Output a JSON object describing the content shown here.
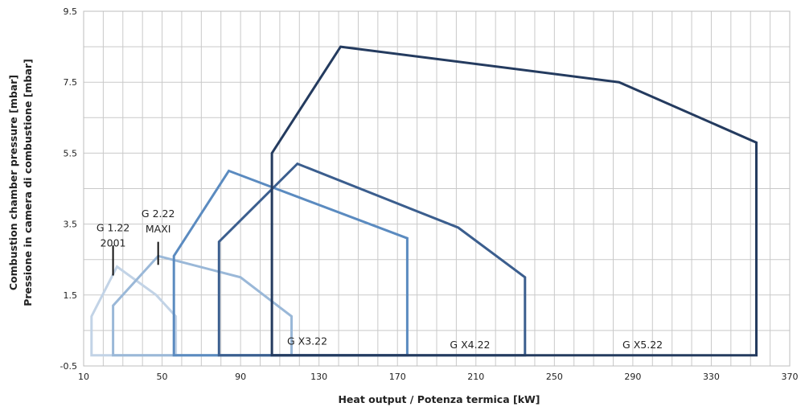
{
  "chart_data": {
    "type": "line",
    "xlabel": "Heat output / Potenza termica [kW]",
    "ylabel": [
      "Combustion chamber pressure [mbar]",
      "Pressione in camera di combustione [mbar]"
    ],
    "xlim": [
      10,
      370
    ],
    "ylim": [
      -0.5,
      9.5
    ],
    "xticks": [
      "10",
      "50",
      "90",
      "130",
      "170",
      "210",
      "250",
      "290",
      "330",
      "370"
    ],
    "yticks": [
      "-0.5",
      "1.5",
      "3.5",
      "5.5",
      "7.5",
      "9.5"
    ],
    "x_minor_grid_step": 10,
    "y_minor_grid_step": 1,
    "grid": true,
    "series": [
      {
        "name": "G 1.22 2001",
        "color": "#c2d3e6",
        "points": [
          [
            14,
            -0.2
          ],
          [
            14,
            0.9
          ],
          [
            27,
            2.3
          ],
          [
            47,
            1.5
          ],
          [
            57,
            0.9
          ],
          [
            57,
            -0.2
          ]
        ]
      },
      {
        "name": "G 2.22 MAXI",
        "color": "#9ab8d8",
        "points": [
          [
            25,
            -0.2
          ],
          [
            25,
            1.2
          ],
          [
            48,
            2.6
          ],
          [
            90,
            2.0
          ],
          [
            116,
            0.9
          ],
          [
            116,
            -0.2
          ]
        ]
      },
      {
        "name": "G X3.22",
        "color": "#5b8bc0",
        "points": [
          [
            56,
            -0.2
          ],
          [
            56,
            2.6
          ],
          [
            84,
            5.0
          ],
          [
            175,
            3.1
          ],
          [
            175,
            -0.2
          ]
        ]
      },
      {
        "name": "G X4.22",
        "color": "#3b5e8e",
        "points": [
          [
            79,
            -0.2
          ],
          [
            79,
            3.0
          ],
          [
            119,
            5.2
          ],
          [
            201,
            3.4
          ],
          [
            235,
            2.0
          ],
          [
            235,
            -0.2
          ]
        ]
      },
      {
        "name": "G X5.22",
        "color": "#243b5f",
        "points": [
          [
            106,
            -0.2
          ],
          [
            106,
            5.5
          ],
          [
            141,
            8.5
          ],
          [
            283,
            7.5
          ],
          [
            353,
            5.8
          ],
          [
            353,
            -0.2
          ]
        ]
      }
    ],
    "labels": [
      {
        "lines": [
          "G 1.22",
          "2001"
        ],
        "x": 25,
        "y": 3.3,
        "marker_y": [
          2.9,
          2.05
        ]
      },
      {
        "lines": [
          "G 2.22",
          "MAXI"
        ],
        "x": 48,
        "y": 3.7,
        "marker_y": [
          3.0,
          2.35
        ]
      },
      {
        "lines": [
          "G X3.22"
        ],
        "x": 124,
        "y": 0.1
      },
      {
        "lines": [
          "G X4.22"
        ],
        "x": 207,
        "y": 0.0
      },
      {
        "lines": [
          "G X5.22"
        ],
        "x": 295,
        "y": 0.0
      }
    ]
  }
}
